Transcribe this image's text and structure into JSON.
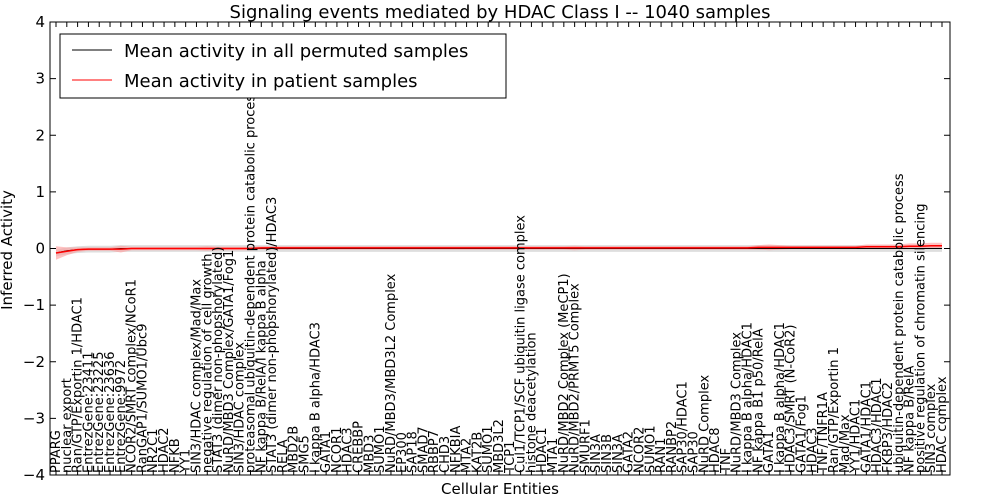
{
  "chart_data": {
    "type": "line",
    "title": "Signaling events mediated by HDAC Class I -- 1040 samples",
    "xlabel": "Cellular Entities",
    "ylabel": "Inferred Activity",
    "ylim": [
      -4,
      4
    ],
    "yticks": [
      -4,
      -3,
      -2,
      -1,
      0,
      1,
      2,
      3,
      4
    ],
    "ytick_labels": [
      "−4",
      "−3",
      "−2",
      "−1",
      "0",
      "1",
      "2",
      "3",
      "4"
    ],
    "grid": false,
    "legend": {
      "position": "top-left",
      "entries": [
        {
          "label": "Mean activity in all permuted samples",
          "color": "#000000"
        },
        {
          "label": "Mean activity in patient samples",
          "color": "#ff0000"
        }
      ]
    },
    "categories": [
      "PPARG",
      "nuclear export",
      "Ran/GTP/Exportin 1/HDAC1",
      "EntrezGene:23411",
      "EntrezGene:23225",
      "EntrezGene:23636",
      "EntrezGene:9972",
      "NCOR2/SMRT complex/NCoR1",
      "RanGAP1/SUMO1/Ubc9",
      "NR2C1",
      "HDAC2",
      "NFKB",
      "YY1",
      "SIN3/HDAC complex/Mad/Max",
      "negative regulation of cell growth",
      "STAT3 (dimer non-phopshorylated)",
      "NuRD/MBD3 Complex/GATA1/Fog1",
      "SIN3/HDAC complex",
      "proteasomal ubiquitin-dependent protein catabolic process",
      "NF kappa B/RelA/I kappa B alpha",
      "STAT3 (dimer non-phopshorylated)/HDAC3",
      "RELA",
      "MBD2B",
      "SMG5",
      "I kappa B alpha/HDAC3",
      "GATA1",
      "NCOR1",
      "HDAC3",
      "CREBBP",
      "MBD3",
      "SUMO1",
      "NuRD/MBD3/MBD3L2 Complex",
      "EP300",
      "SAP18",
      "SMAD7",
      "RBBP7",
      "CHD3",
      "NFKBIA",
      "MTA2",
      "KAT2B",
      "SUMO1",
      "MBD3L2",
      "TCP1",
      "Cul1/TCP1/SCF ubiquitin ligase complex",
      "histone deacetylation",
      "HDAC1",
      "MTA1",
      "NuRD/MBD2 Complex (MeCP1)",
      "NuRD/MBD2/PRMT5 Complex",
      "SMURF1",
      "SIN3A",
      "SIN3B",
      "SIN3A",
      "GATA2",
      "NCOR2",
      "SUMO1",
      "RAN1",
      "RANBP2",
      "SAP30/HDAC1",
      "SAP30",
      "NuRD Complex",
      "HDAC8",
      "TNF",
      "NuRD/MBD3 Complex",
      "I kappa B alpha/HDAC1",
      "NF kappa B1 p50/RelA",
      "GATA1",
      "I kappa B alpha/HDAC1",
      "HDAC3/SMRT (N-CoR2)",
      "GATA1/Fog1",
      "HDAC3",
      "TNF/TNFR1A",
      "Ran/GTP/Exportin 1",
      "Mad/Max",
      "YY1/HDAC1",
      "GATA1/HDAC1",
      "HDAC3/HDAC1",
      "FKBP3/HDAC2",
      "ubiquitin-dependent protein catabolic process",
      "NF kappa B/RelA",
      "positive regulation of chromatin silencing",
      "SIN3 complex",
      "HDAC complex"
    ],
    "series": [
      {
        "name": "Mean activity in all permuted samples",
        "color": "#000000",
        "values": [
          -0.08,
          -0.04,
          -0.02,
          -0.01,
          -0.01,
          -0.01,
          0.0,
          0.0,
          0.0,
          0.0,
          0.0,
          0.0,
          0.0,
          0.0,
          0.0,
          0.0,
          0.0,
          0.0,
          0.0,
          0.0,
          0.0,
          0.0,
          0.0,
          0.0,
          0.0,
          0.0,
          0.0,
          0.0,
          0.0,
          0.0,
          0.0,
          0.0,
          0.0,
          0.0,
          0.0,
          0.0,
          0.0,
          0.0,
          0.0,
          0.0,
          0.0,
          0.0,
          0.0,
          0.0,
          0.0,
          0.0,
          0.0,
          0.0,
          0.0,
          0.0,
          0.0,
          0.0,
          0.0,
          0.0,
          0.0,
          0.0,
          0.0,
          0.0,
          0.0,
          0.0,
          0.0,
          0.0,
          0.0,
          0.0,
          0.0,
          0.0,
          0.0,
          0.0,
          0.0,
          0.0,
          0.0,
          0.0,
          0.0,
          0.0,
          0.0,
          0.0,
          0.0,
          0.0,
          0.0,
          0.0,
          0.0,
          0.0,
          0.0
        ]
      },
      {
        "name": "Mean activity in patient samples",
        "color": "#ff0000",
        "band": "#ff9999",
        "values": [
          -0.08,
          -0.05,
          -0.02,
          -0.01,
          -0.01,
          -0.01,
          -0.01,
          0.0,
          0.0,
          0.0,
          0.0,
          0.0,
          0.0,
          0.0,
          0.0,
          0.0,
          0.0,
          0.0,
          0.0,
          0.01,
          0.01,
          0.01,
          0.01,
          0.01,
          0.01,
          0.01,
          0.01,
          0.01,
          0.01,
          0.01,
          0.01,
          0.01,
          0.01,
          0.01,
          0.01,
          0.01,
          0.01,
          0.01,
          0.01,
          0.01,
          0.01,
          0.01,
          0.01,
          0.01,
          0.01,
          0.01,
          0.01,
          0.01,
          0.01,
          0.01,
          0.01,
          0.01,
          0.01,
          0.01,
          0.01,
          0.01,
          0.01,
          0.01,
          0.01,
          0.01,
          0.01,
          0.01,
          0.01,
          0.01,
          0.01,
          0.02,
          0.02,
          0.02,
          0.02,
          0.02,
          0.02,
          0.02,
          0.02,
          0.02,
          0.02,
          0.03,
          0.03,
          0.03,
          0.03,
          0.04,
          0.04,
          0.05,
          0.05
        ],
        "spread": [
          0.12,
          0.07,
          0.04,
          0.03,
          0.03,
          0.03,
          0.06,
          0.03,
          0.03,
          0.03,
          0.03,
          0.03,
          0.03,
          0.03,
          0.04,
          0.03,
          0.03,
          0.03,
          0.03,
          0.03,
          0.03,
          0.03,
          0.03,
          0.03,
          0.03,
          0.03,
          0.03,
          0.03,
          0.03,
          0.03,
          0.03,
          0.03,
          0.03,
          0.03,
          0.03,
          0.03,
          0.03,
          0.03,
          0.03,
          0.03,
          0.03,
          0.03,
          0.03,
          0.03,
          0.03,
          0.03,
          0.03,
          0.03,
          0.04,
          0.03,
          0.03,
          0.03,
          0.03,
          0.03,
          0.03,
          0.03,
          0.03,
          0.03,
          0.03,
          0.03,
          0.03,
          0.03,
          0.03,
          0.03,
          0.03,
          0.04,
          0.05,
          0.04,
          0.03,
          0.03,
          0.03,
          0.03,
          0.03,
          0.03,
          0.03,
          0.04,
          0.04,
          0.04,
          0.04,
          0.05,
          0.05,
          0.05,
          0.05
        ]
      }
    ],
    "permuted_band_spread": 0.06
  }
}
